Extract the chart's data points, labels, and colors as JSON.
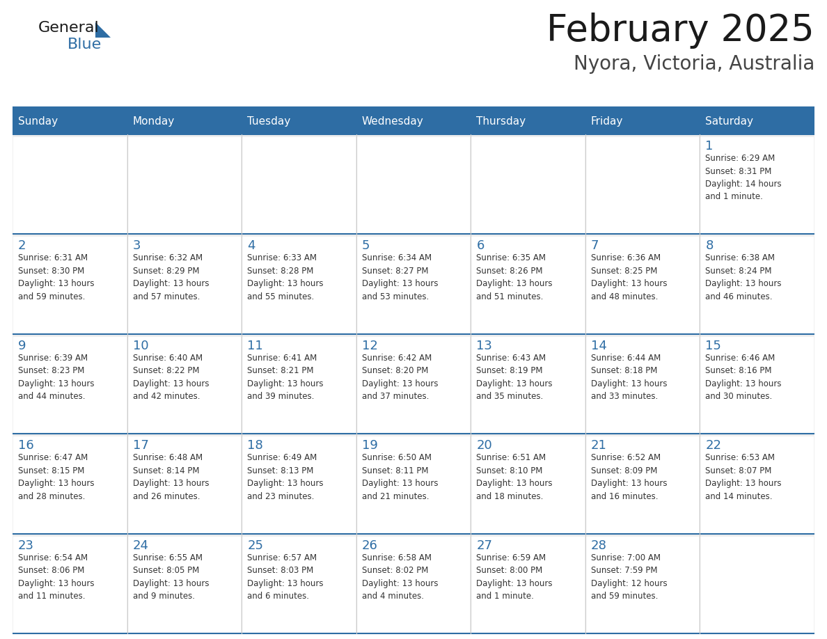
{
  "title": "February 2025",
  "subtitle": "Nyora, Victoria, Australia",
  "header_bg": "#2E6DA4",
  "header_text": "#FFFFFF",
  "cell_bg": "#EFEFEF",
  "cell_bg_white": "#FFFFFF",
  "day_number_color": "#2E6DA4",
  "cell_text_color": "#333333",
  "line_color": "#2E6DA4",
  "days_of_week": [
    "Sunday",
    "Monday",
    "Tuesday",
    "Wednesday",
    "Thursday",
    "Friday",
    "Saturday"
  ],
  "weeks": [
    [
      {
        "day": null,
        "info": null
      },
      {
        "day": null,
        "info": null
      },
      {
        "day": null,
        "info": null
      },
      {
        "day": null,
        "info": null
      },
      {
        "day": null,
        "info": null
      },
      {
        "day": null,
        "info": null
      },
      {
        "day": 1,
        "info": "Sunrise: 6:29 AM\nSunset: 8:31 PM\nDaylight: 14 hours\nand 1 minute."
      }
    ],
    [
      {
        "day": 2,
        "info": "Sunrise: 6:31 AM\nSunset: 8:30 PM\nDaylight: 13 hours\nand 59 minutes."
      },
      {
        "day": 3,
        "info": "Sunrise: 6:32 AM\nSunset: 8:29 PM\nDaylight: 13 hours\nand 57 minutes."
      },
      {
        "day": 4,
        "info": "Sunrise: 6:33 AM\nSunset: 8:28 PM\nDaylight: 13 hours\nand 55 minutes."
      },
      {
        "day": 5,
        "info": "Sunrise: 6:34 AM\nSunset: 8:27 PM\nDaylight: 13 hours\nand 53 minutes."
      },
      {
        "day": 6,
        "info": "Sunrise: 6:35 AM\nSunset: 8:26 PM\nDaylight: 13 hours\nand 51 minutes."
      },
      {
        "day": 7,
        "info": "Sunrise: 6:36 AM\nSunset: 8:25 PM\nDaylight: 13 hours\nand 48 minutes."
      },
      {
        "day": 8,
        "info": "Sunrise: 6:38 AM\nSunset: 8:24 PM\nDaylight: 13 hours\nand 46 minutes."
      }
    ],
    [
      {
        "day": 9,
        "info": "Sunrise: 6:39 AM\nSunset: 8:23 PM\nDaylight: 13 hours\nand 44 minutes."
      },
      {
        "day": 10,
        "info": "Sunrise: 6:40 AM\nSunset: 8:22 PM\nDaylight: 13 hours\nand 42 minutes."
      },
      {
        "day": 11,
        "info": "Sunrise: 6:41 AM\nSunset: 8:21 PM\nDaylight: 13 hours\nand 39 minutes."
      },
      {
        "day": 12,
        "info": "Sunrise: 6:42 AM\nSunset: 8:20 PM\nDaylight: 13 hours\nand 37 minutes."
      },
      {
        "day": 13,
        "info": "Sunrise: 6:43 AM\nSunset: 8:19 PM\nDaylight: 13 hours\nand 35 minutes."
      },
      {
        "day": 14,
        "info": "Sunrise: 6:44 AM\nSunset: 8:18 PM\nDaylight: 13 hours\nand 33 minutes."
      },
      {
        "day": 15,
        "info": "Sunrise: 6:46 AM\nSunset: 8:16 PM\nDaylight: 13 hours\nand 30 minutes."
      }
    ],
    [
      {
        "day": 16,
        "info": "Sunrise: 6:47 AM\nSunset: 8:15 PM\nDaylight: 13 hours\nand 28 minutes."
      },
      {
        "day": 17,
        "info": "Sunrise: 6:48 AM\nSunset: 8:14 PM\nDaylight: 13 hours\nand 26 minutes."
      },
      {
        "day": 18,
        "info": "Sunrise: 6:49 AM\nSunset: 8:13 PM\nDaylight: 13 hours\nand 23 minutes."
      },
      {
        "day": 19,
        "info": "Sunrise: 6:50 AM\nSunset: 8:11 PM\nDaylight: 13 hours\nand 21 minutes."
      },
      {
        "day": 20,
        "info": "Sunrise: 6:51 AM\nSunset: 8:10 PM\nDaylight: 13 hours\nand 18 minutes."
      },
      {
        "day": 21,
        "info": "Sunrise: 6:52 AM\nSunset: 8:09 PM\nDaylight: 13 hours\nand 16 minutes."
      },
      {
        "day": 22,
        "info": "Sunrise: 6:53 AM\nSunset: 8:07 PM\nDaylight: 13 hours\nand 14 minutes."
      }
    ],
    [
      {
        "day": 23,
        "info": "Sunrise: 6:54 AM\nSunset: 8:06 PM\nDaylight: 13 hours\nand 11 minutes."
      },
      {
        "day": 24,
        "info": "Sunrise: 6:55 AM\nSunset: 8:05 PM\nDaylight: 13 hours\nand 9 minutes."
      },
      {
        "day": 25,
        "info": "Sunrise: 6:57 AM\nSunset: 8:03 PM\nDaylight: 13 hours\nand 6 minutes."
      },
      {
        "day": 26,
        "info": "Sunrise: 6:58 AM\nSunset: 8:02 PM\nDaylight: 13 hours\nand 4 minutes."
      },
      {
        "day": 27,
        "info": "Sunrise: 6:59 AM\nSunset: 8:00 PM\nDaylight: 13 hours\nand 1 minute."
      },
      {
        "day": 28,
        "info": "Sunrise: 7:00 AM\nSunset: 7:59 PM\nDaylight: 12 hours\nand 59 minutes."
      },
      {
        "day": null,
        "info": null
      }
    ]
  ],
  "logo_general_color": "#1a1a1a",
  "logo_blue_color": "#2E6DA4",
  "logo_triangle_color": "#2E6DA4",
  "title_color": "#1a1a1a",
  "subtitle_color": "#444444"
}
